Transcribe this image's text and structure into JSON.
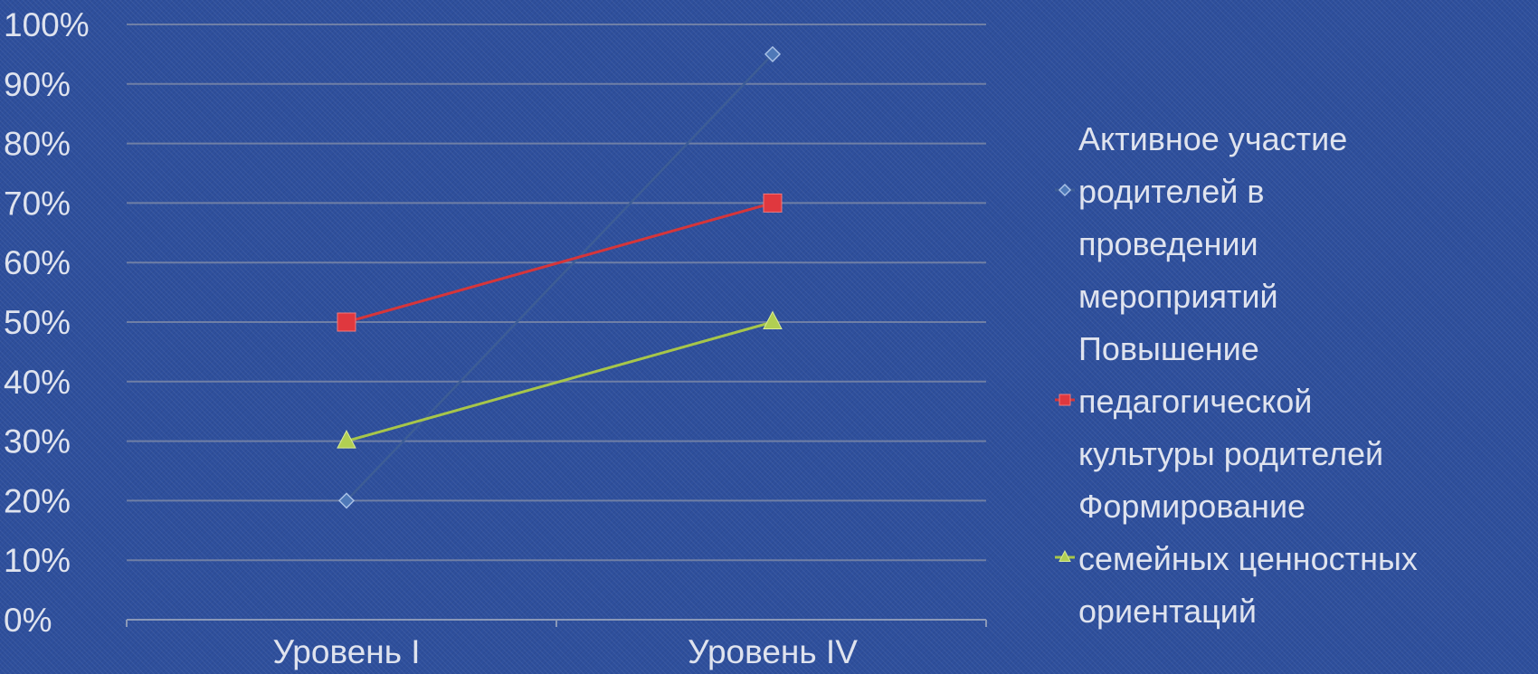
{
  "chart_data": {
    "type": "line",
    "categories": [
      "Уровень I",
      "Уровень IV"
    ],
    "ylim": [
      0,
      100
    ],
    "y_ticks": [
      "0%",
      "10%",
      "20%",
      "30%",
      "40%",
      "50%",
      "60%",
      "70%",
      "80%",
      "90%",
      "100%"
    ],
    "y_tick_values": [
      0,
      10,
      20,
      30,
      40,
      50,
      60,
      70,
      80,
      90,
      100
    ],
    "grid": true,
    "legend_position": "right",
    "series": [
      {
        "legend_lines": [
          "Активное участие",
          "родителей в",
          "проведении",
          "мероприятий"
        ],
        "values": [
          20,
          95
        ],
        "color": "#3d5d96",
        "marker_color": "#4f79b8",
        "marker": "diamond"
      },
      {
        "legend_lines": [
          "Повышение",
          "педагогической",
          "культуры родителей"
        ],
        "values": [
          50,
          70
        ],
        "color": "#d6353a",
        "marker_color": "#e0383e",
        "marker": "square"
      },
      {
        "legend_lines": [
          "Формирование",
          "семейных ценностных",
          "ориентаций"
        ],
        "values": [
          30,
          50
        ],
        "color": "#a7c64a",
        "marker_color": "#b1cf52",
        "marker": "triangle"
      }
    ]
  }
}
